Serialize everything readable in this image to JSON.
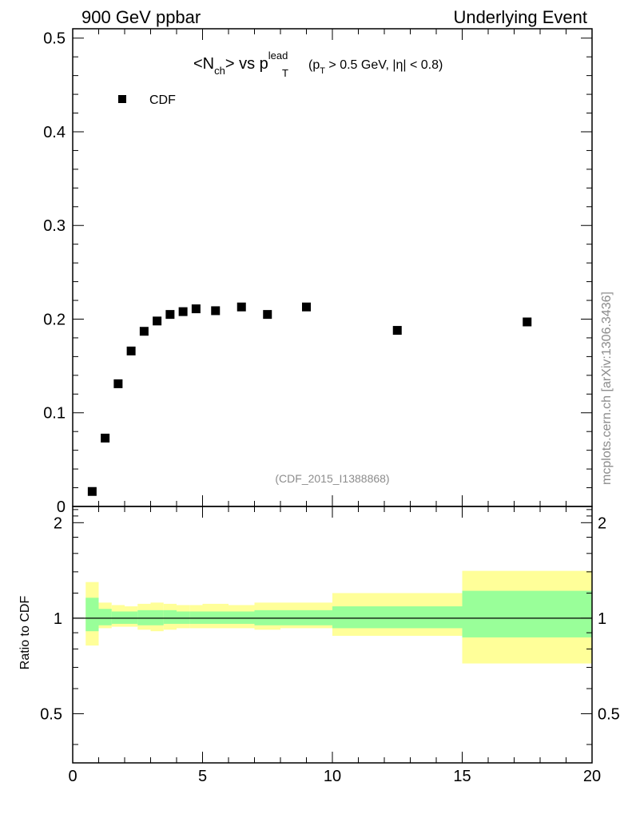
{
  "header": {
    "left": "900 GeV ppbar",
    "right": "Underlying Event"
  },
  "side_label": "mcplots.cern.ch [arXiv:1306.3436]",
  "watermark": "(CDF_2015_I1388868)",
  "title": {
    "open": "<N",
    "nsub": "ch",
    "mid": "> vs p",
    "psup": "lead",
    "psub": "T",
    "cut_open": "(p",
    "cut_sub": "T",
    "cut_rest": " > 0.5 GeV, |η| < 0.8)"
  },
  "colors": {
    "inner_band": "#99ff99",
    "outer_band": "#ffff99",
    "marker": "#000000"
  },
  "chart_data": [
    {
      "type": "scatter",
      "name": "main",
      "title": "<Nch> vs pT lead (pT > 0.5 GeV, |η| < 0.8)",
      "xlim": [
        0,
        20
      ],
      "ylim": [
        0,
        0.51
      ],
      "ytick_values": [
        0,
        0.1,
        0.2,
        0.3,
        0.4,
        0.5
      ],
      "ytick_labels": [
        "0",
        "0.1",
        "0.2",
        "0.3",
        "0.4",
        "0.5"
      ],
      "legend": {
        "label": "CDF",
        "position": "top-left"
      },
      "series": [
        {
          "name": "CDF",
          "x": [
            0.75,
            1.25,
            1.75,
            2.25,
            2.75,
            3.25,
            3.75,
            4.25,
            4.75,
            5.5,
            6.5,
            7.5,
            9.0,
            12.5,
            17.5
          ],
          "y": [
            0.016,
            0.073,
            0.131,
            0.166,
            0.187,
            0.198,
            0.205,
            0.208,
            0.211,
            0.209,
            0.213,
            0.205,
            0.213,
            0.188,
            0.197
          ]
        }
      ]
    },
    {
      "type": "area",
      "name": "ratio",
      "ylabel": "Ratio to CDF",
      "xlabel": "",
      "xlim": [
        0,
        20
      ],
      "ylim": [
        0.35,
        2.25
      ],
      "xtick_values": [
        0,
        5,
        10,
        15,
        20
      ],
      "xtick_labels": [
        "0",
        "5",
        "10",
        "15",
        "20"
      ],
      "ytick_values": [
        0.5,
        1,
        2
      ],
      "ytick_labels": [
        "0.5",
        "1",
        "2"
      ],
      "reference_line": 1,
      "bins": [
        {
          "x0": 0.5,
          "x1": 1.0,
          "inner": [
            0.91,
            1.16
          ],
          "outer": [
            0.82,
            1.3
          ]
        },
        {
          "x0": 1.0,
          "x1": 1.5,
          "inner": [
            0.95,
            1.07
          ],
          "outer": [
            0.93,
            1.12
          ]
        },
        {
          "x0": 1.5,
          "x1": 2.0,
          "inner": [
            0.96,
            1.05
          ],
          "outer": [
            0.94,
            1.1
          ]
        },
        {
          "x0": 2.0,
          "x1": 2.5,
          "inner": [
            0.96,
            1.05
          ],
          "outer": [
            0.94,
            1.09
          ]
        },
        {
          "x0": 2.5,
          "x1": 3.0,
          "inner": [
            0.95,
            1.06
          ],
          "outer": [
            0.92,
            1.11
          ]
        },
        {
          "x0": 3.0,
          "x1": 3.5,
          "inner": [
            0.95,
            1.06
          ],
          "outer": [
            0.91,
            1.12
          ]
        },
        {
          "x0": 3.5,
          "x1": 4.0,
          "inner": [
            0.96,
            1.06
          ],
          "outer": [
            0.92,
            1.11
          ]
        },
        {
          "x0": 4.0,
          "x1": 4.5,
          "inner": [
            0.96,
            1.05
          ],
          "outer": [
            0.93,
            1.1
          ]
        },
        {
          "x0": 4.5,
          "x1": 5.0,
          "inner": [
            0.96,
            1.05
          ],
          "outer": [
            0.93,
            1.1
          ]
        },
        {
          "x0": 5.0,
          "x1": 6.0,
          "inner": [
            0.96,
            1.05
          ],
          "outer": [
            0.93,
            1.11
          ]
        },
        {
          "x0": 6.0,
          "x1": 7.0,
          "inner": [
            0.96,
            1.05
          ],
          "outer": [
            0.93,
            1.1
          ]
        },
        {
          "x0": 7.0,
          "x1": 8.0,
          "inner": [
            0.95,
            1.06
          ],
          "outer": [
            0.92,
            1.12
          ]
        },
        {
          "x0": 8.0,
          "x1": 10.0,
          "inner": [
            0.95,
            1.06
          ],
          "outer": [
            0.93,
            1.12
          ]
        },
        {
          "x0": 10.0,
          "x1": 15.0,
          "inner": [
            0.93,
            1.09
          ],
          "outer": [
            0.88,
            1.2
          ]
        },
        {
          "x0": 15.0,
          "x1": 20.0,
          "inner": [
            0.87,
            1.22
          ],
          "outer": [
            0.72,
            1.41
          ]
        }
      ]
    }
  ]
}
